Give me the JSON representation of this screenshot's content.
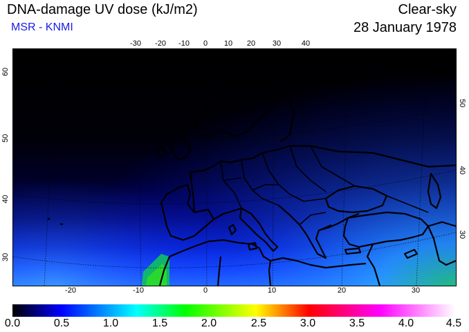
{
  "header": {
    "title": "DNA-damage UV dose (kJ/m2)",
    "subtitle": "MSR - KNMI",
    "condition": "Clear-sky",
    "date": "28 January 1978"
  },
  "map": {
    "top_lon_labels": [
      "-30",
      "-20",
      "-10",
      "0",
      "10",
      "20",
      "30",
      "40"
    ],
    "bottom_lon_labels": [
      "-20",
      "-10",
      "0",
      "10",
      "20",
      "30"
    ],
    "left_lat_labels": [
      "60",
      "50",
      "40",
      "30"
    ],
    "right_lat_labels": [
      "50",
      "40",
      "30"
    ]
  },
  "colorbar": {
    "labels": [
      "0.0",
      "0.5",
      "1.0",
      "1.5",
      "2.0",
      "2.5",
      "3.0",
      "3.5",
      "4.0",
      "4.5"
    ],
    "colors": [
      "#000000",
      "#0000ff",
      "#00ffff",
      "#00ff00",
      "#ffff00",
      "#ff0000",
      "#ff00ff",
      "#ffffff"
    ]
  }
}
